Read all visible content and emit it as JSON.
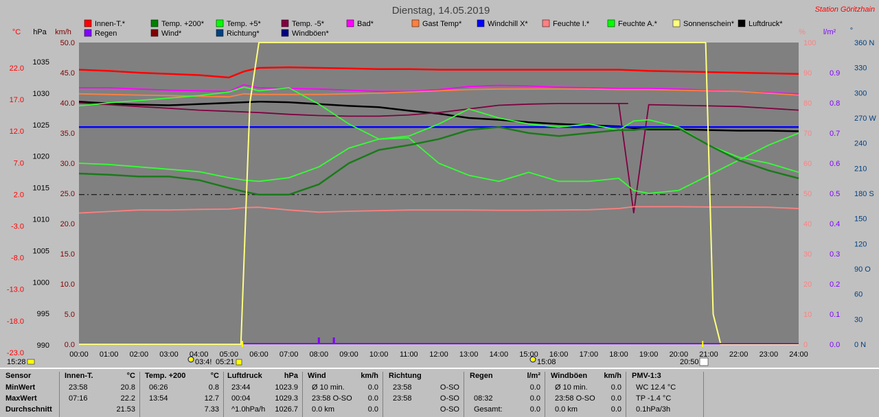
{
  "station": "Station Göritzhain",
  "title": "Dienstag, 14.05.2019",
  "colors": {
    "innen": "#ff0000",
    "temp200": "#006400",
    "temp5": "#00ff00",
    "tempm5": "#7b0040",
    "bad": "#ff00ff",
    "gast": "#ff8040",
    "windchill": "#0000ff",
    "feuchteI": "#ff8080",
    "feuchteA": "#00ff00",
    "sonne": "#ffff80",
    "luftdruck": "#000000",
    "regen": "#8000ff",
    "wind": "#800000",
    "richtung": "#004080",
    "windboeen": "#000080"
  },
  "legend": [
    [
      "Innen-T.*",
      "#ff0000"
    ],
    [
      "Temp. +200*",
      "#008000"
    ],
    [
      "Temp. +5*",
      "#00ff00"
    ],
    [
      "Temp. -5*",
      "#800040"
    ],
    [
      "Bad*",
      "#ff00ff"
    ],
    [
      "Gast Temp*",
      "#ff8040"
    ],
    [
      "Windchill X*",
      "#0000ff"
    ],
    [
      "Feuchte I.*",
      "#ff8080"
    ],
    [
      "Feuchte A.*",
      "#00ff00"
    ],
    [
      "Sonnenschein*",
      "#ffff80"
    ],
    [
      "Luftdruck*",
      "#000000"
    ],
    [
      "Regen",
      "#8000ff"
    ],
    [
      "Wind*",
      "#800000"
    ],
    [
      "Richtung*",
      "#004080"
    ],
    [
      "Windböen*",
      "#000080"
    ]
  ],
  "axes": {
    "celsius_unit": "°C",
    "hpa_unit": "hPa",
    "kmh_unit": "km/h",
    "pct_unit": "%",
    "lm2_unit": "l/m²",
    "deg_unit": "°",
    "celsius": [
      "22.0",
      "17.0",
      "12.0",
      "7.0",
      "2.0",
      "-3.0",
      "-8.0",
      "-13.0",
      "-18.0",
      "-23.0"
    ],
    "hpa": [
      "1035",
      "1030",
      "1025",
      "1020",
      "1015",
      "1010",
      "1005",
      "1000",
      "995",
      "990"
    ],
    "kmh": [
      "50.0",
      "45.0",
      "40.0",
      "35.0",
      "30.0",
      "25.0",
      "20.0",
      "15.0",
      "10.0",
      "5.0",
      "0.0"
    ],
    "pct": [
      "100",
      "90",
      "80",
      "70",
      "60",
      "50",
      "40",
      "30",
      "20",
      "10",
      "0"
    ],
    "lm2": [
      "0.9",
      "0.8",
      "0.7",
      "0.6",
      "0.5",
      "0.4",
      "0.3",
      "0.2",
      "0.1",
      "0.0"
    ],
    "deg": [
      "360 N",
      "330",
      "300",
      "270 W",
      "240",
      "210",
      "180 S",
      "150",
      "120",
      "90 O",
      "60",
      "30",
      "0 N"
    ],
    "time": [
      "00:00",
      "01:00",
      "02:00",
      "03:00",
      "04:00",
      "05:00",
      "06:00",
      "07:00",
      "08:00",
      "09:00",
      "10:00",
      "11:00",
      "12:00",
      "13:00",
      "14:00",
      "15:00",
      "16:00",
      "17:00",
      "18:00",
      "19:00",
      "20:00",
      "21:00",
      "22:00",
      "23:00",
      "24:00"
    ]
  },
  "markers": {
    "left_time": "15:28",
    "sunrise": "03:4!",
    "t1": "05:21",
    "moon": "15:08",
    "sunset": "20:50"
  },
  "chart_data": {
    "type": "line",
    "x_unit": "hours",
    "x": [
      0,
      1,
      2,
      3,
      4,
      5,
      5.5,
      6,
      7,
      8,
      9,
      10,
      11,
      12,
      13,
      14,
      15,
      16,
      17,
      18,
      18.5,
      19,
      20,
      21,
      22,
      23,
      24
    ],
    "series": [
      {
        "name": "Innen-T.*",
        "unit": "km/h-scale",
        "values": [
          45.5,
          45.3,
          45.0,
          44.8,
          44.6,
          44.2,
          45.2,
          45.8,
          45.9,
          45.8,
          45.7,
          45.6,
          45.6,
          45.5,
          45.5,
          45.5,
          45.5,
          45.5,
          45.5,
          45.5,
          45.4,
          45.3,
          45.2,
          45.1,
          45.0,
          44.9,
          44.8
        ]
      },
      {
        "name": "Bad*",
        "unit": "km/h-scale",
        "values": [
          42.5,
          42.5,
          42.3,
          42.1,
          42.0,
          41.9,
          43.0,
          42.5,
          42.4,
          42.3,
          42.1,
          41.9,
          41.9,
          42.2,
          42.7,
          42.9,
          42.8,
          42.6,
          42.5,
          42.4,
          42.4,
          42.4,
          42.3,
          42.1,
          41.9,
          41.7,
          41.5
        ]
      },
      {
        "name": "Gast Temp*",
        "unit": "km/h-scale",
        "values": [
          41.5,
          41.4,
          41.3,
          41.2,
          41.1,
          41.0,
          41.5,
          41.4,
          41.4,
          41.4,
          41.5,
          41.6,
          41.8,
          42.0,
          42.2,
          42.3,
          42.3,
          42.3,
          42.3,
          42.2,
          42.2,
          42.2,
          42.1,
          42.0,
          41.9,
          41.6,
          41.3
        ]
      },
      {
        "name": "Luftdruck*",
        "unit": "km/h-scale",
        "values": [
          40.2,
          39.9,
          39.7,
          39.6,
          39.8,
          40.0,
          40.1,
          40.2,
          40.1,
          39.8,
          39.5,
          39.3,
          38.7,
          38.2,
          37.5,
          37.2,
          36.8,
          36.5,
          36.3,
          36.1,
          35.8,
          35.6,
          35.6,
          35.5,
          35.4,
          35.4,
          35.3
        ]
      },
      {
        "name": "Temp. -5*",
        "unit": "km/h-scale",
        "values": [
          40.0,
          39.7,
          39.4,
          39.1,
          38.8,
          38.6,
          38.5,
          38.4,
          38.1,
          37.9,
          37.8,
          37.8,
          38.0,
          38.4,
          39.0,
          39.6,
          39.8,
          39.9,
          39.9,
          39.9,
          21.8,
          39.7,
          39.6,
          39.5,
          39.4,
          39.1,
          38.8
        ]
      },
      {
        "name": "Windchill X*",
        "unit": "km/h-scale",
        "values": [
          36,
          36,
          36,
          36,
          36,
          36,
          36,
          36,
          36,
          36,
          36,
          36,
          36,
          36,
          36,
          36,
          36,
          36,
          36,
          36,
          36,
          36,
          36,
          36,
          36,
          36,
          36
        ]
      },
      {
        "name": "Temp. +5*",
        "unit": "km/h-scale",
        "values": [
          39.5,
          40.0,
          40.4,
          40.8,
          41.2,
          41.8,
          42.6,
          42.0,
          42.5,
          39.8,
          36.5,
          34.0,
          34.5,
          36.5,
          39.0,
          37.5,
          36.5,
          36.0,
          36.5,
          35.5,
          37.0,
          37.2,
          36.0,
          33.0,
          31.0,
          30.0,
          28.5
        ]
      },
      {
        "name": "Feuchte A.*",
        "unit": "km/h-scale",
        "values": [
          30.0,
          29.8,
          29.4,
          29.0,
          28.6,
          27.6,
          27.2,
          27.0,
          27.6,
          29.4,
          32.5,
          34.0,
          34.2,
          30.0,
          28.0,
          27.0,
          28.5,
          27.0,
          27.0,
          27.5,
          25.5,
          25.0,
          25.5,
          28.0,
          30.5,
          33.0,
          35.0
        ]
      },
      {
        "name": "Temp. +200*",
        "unit": "km/h-scale",
        "values": [
          28.3,
          28.1,
          27.8,
          27.8,
          27.2,
          25.9,
          25.3,
          24.8,
          24.8,
          26.5,
          30.0,
          32.2,
          33.0,
          34.0,
          35.5,
          36.0,
          35.0,
          34.5,
          35.0,
          35.5,
          35.5,
          35.8,
          35.8,
          33.0,
          30.5,
          28.8,
          27.5
        ]
      },
      {
        "name": "Feuchte I.*",
        "unit": "pct",
        "values": [
          43.5,
          44.0,
          44.5,
          44.5,
          44.7,
          44.8,
          45.3,
          45.4,
          44.5,
          43.8,
          44.1,
          44.3,
          44.5,
          44.5,
          44.5,
          44.4,
          44.4,
          44.5,
          44.6,
          45.0,
          45.6,
          45.6,
          45.6,
          45.5,
          45.5,
          45.4,
          45.0
        ]
      },
      {
        "name": "Sonnenschein*",
        "unit": "pct",
        "values": [
          0,
          0,
          0,
          0,
          0,
          0,
          0,
          100,
          100,
          100,
          100,
          100,
          100,
          100,
          100,
          100,
          100,
          100,
          100,
          100,
          100,
          100,
          0,
          0,
          0,
          0,
          0
        ]
      },
      {
        "name": "Regen",
        "unit": "lm2",
        "events": [
          [
            "08:00",
            0.02
          ],
          [
            "08:30",
            0.02
          ]
        ]
      }
    ],
    "reference_line": {
      "name": "25.0 km/h dashed",
      "value": 24.8
    }
  },
  "stats": {
    "sensor": {
      "title": "Sensor",
      "rows": [
        "MinWert",
        "MaxWert",
        "Durchschnitt"
      ]
    },
    "innen": {
      "title": "Innen-T.",
      "unit": "°C",
      "rows": [
        [
          "23:58",
          "20.8"
        ],
        [
          "07:16",
          "22.2"
        ],
        [
          "",
          "21.53"
        ]
      ]
    },
    "temp200": {
      "title": "Temp. +200",
      "unit": "°C",
      "rows": [
        [
          "06:26",
          "0.8"
        ],
        [
          "13:54",
          "12.7"
        ],
        [
          "",
          "7.33"
        ]
      ]
    },
    "luftdruck": {
      "title": "Luftdruck",
      "unit": "hPa",
      "rows": [
        [
          "23:44",
          "1023.9"
        ],
        [
          "00:04",
          "1029.3"
        ],
        [
          "^1.0hPa/h",
          "1026.7"
        ]
      ]
    },
    "wind": {
      "title": "Wind",
      "unit": "km/h",
      "rows": [
        [
          "Ø 10 min.",
          "0.0"
        ],
        [
          "23:58  O-SO",
          "0.0"
        ],
        [
          "0.0 km",
          "0.0"
        ]
      ]
    },
    "richtung": {
      "title": "Richtung",
      "unit": "",
      "rows": [
        [
          "23:58",
          "O-SO"
        ],
        [
          "23:58",
          "O-SO"
        ],
        [
          "",
          "O-SO"
        ]
      ]
    },
    "regen": {
      "title": "Regen",
      "unit": "l/m²",
      "rows": [
        [
          "",
          "0.0"
        ],
        [
          "08:32",
          "0.0"
        ],
        [
          "Gesamt:",
          "0.0"
        ]
      ]
    },
    "windboeen": {
      "title": "Windböen",
      "unit": "km/h",
      "rows": [
        [
          "Ø 10 min.",
          "0.0"
        ],
        [
          "23:58  O-SO",
          "0.0"
        ],
        [
          "0.0 km",
          "0.0"
        ]
      ]
    },
    "pmv": {
      "title": "PMV-1:3",
      "unit": "",
      "rows": [
        [
          "WC 12.4 °C",
          ""
        ],
        [
          "TP -1.4 °C",
          ""
        ],
        [
          "0.1hPa/3h",
          ""
        ]
      ]
    }
  }
}
